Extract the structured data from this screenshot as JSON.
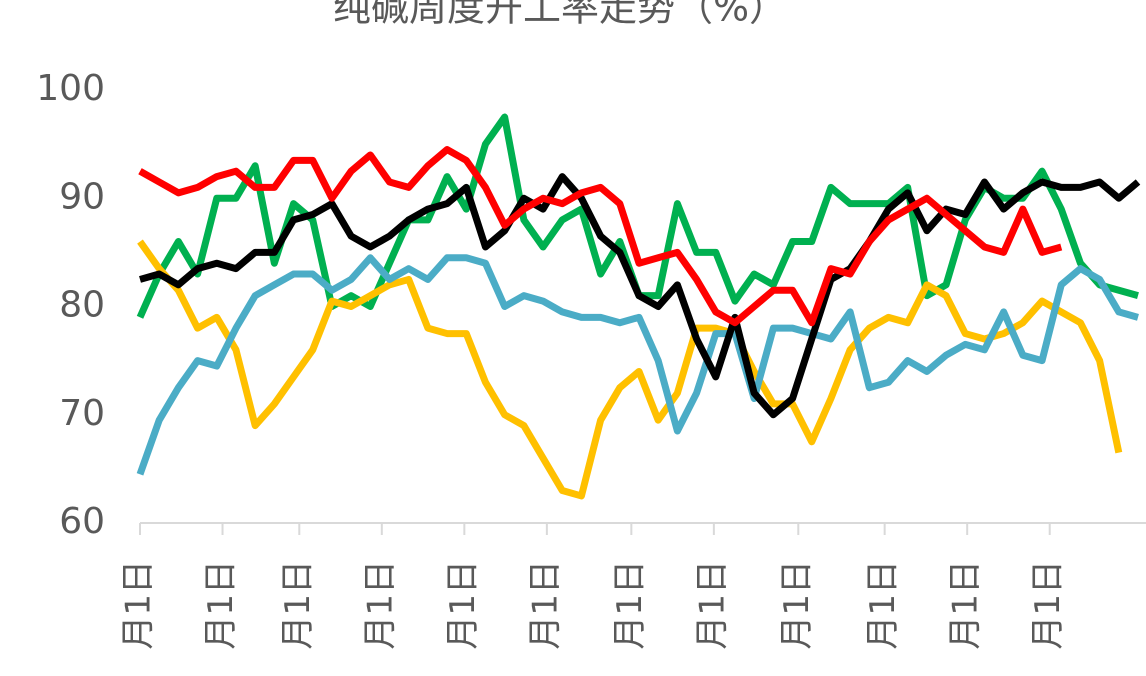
{
  "chart_data": {
    "type": "line",
    "title": "纯碱周度开工率走势（%）",
    "xlim": [
      0,
      52
    ],
    "xticks": [
      {
        "value": 0,
        "label": "月1日"
      },
      {
        "value": 4.3,
        "label": "月1日"
      },
      {
        "value": 8.3,
        "label": "月1日"
      },
      {
        "value": 12.6,
        "label": "月1日"
      },
      {
        "value": 16.9,
        "label": "月1日"
      },
      {
        "value": 21.2,
        "label": "月1日"
      },
      {
        "value": 25.6,
        "label": "月1日"
      },
      {
        "value": 29.9,
        "label": "月1日"
      },
      {
        "value": 34.3,
        "label": "月1日"
      },
      {
        "value": 38.8,
        "label": "月1日"
      },
      {
        "value": 43.1,
        "label": "月1日"
      },
      {
        "value": 47.4,
        "label": "月1日"
      }
    ],
    "ylim": [
      60,
      100
    ],
    "yticks": [
      60,
      70,
      80,
      90,
      100
    ],
    "series": [
      {
        "color": "#00b050",
        "values": [
          79,
          83,
          86,
          83,
          90,
          90,
          93,
          84,
          89.5,
          88,
          80,
          81,
          80,
          84,
          88,
          88,
          92,
          89,
          95,
          97.5,
          88,
          85.5,
          88,
          89,
          83,
          86,
          81,
          81,
          89.5,
          85,
          85,
          80.5,
          83,
          82,
          86,
          86,
          91,
          89.5,
          89.5,
          89.5,
          91,
          81,
          82,
          88,
          91,
          90,
          90,
          92.5,
          89,
          84,
          82,
          81.5,
          81
        ]
      },
      {
        "color": "#ffc000",
        "values": [
          86,
          83.5,
          81.5,
          78,
          79,
          76,
          69,
          71,
          73.5,
          76,
          80.5,
          80,
          81,
          82,
          82.5,
          78,
          77.5,
          77.5,
          73,
          70,
          69,
          66,
          63,
          62.5,
          69.5,
          72.5,
          74,
          69.5,
          72,
          78,
          78,
          77.5,
          74,
          71,
          71,
          67.5,
          71.5,
          76,
          78,
          79,
          78.5,
          82,
          81,
          77.5,
          77,
          77.5,
          78.5,
          80.5,
          79.5,
          78.5,
          75,
          66.5,
          null
        ]
      },
      {
        "color": "#4bacc6",
        "values": [
          64.5,
          69.5,
          72.5,
          75,
          74.5,
          78,
          81,
          82,
          83,
          83,
          81.5,
          82.5,
          84.5,
          82.5,
          83.5,
          82.5,
          84.5,
          84.5,
          84,
          80,
          81,
          80.5,
          79.5,
          79,
          79,
          78.5,
          79,
          75,
          68.5,
          72,
          77.5,
          77.5,
          71.5,
          78,
          78,
          77.5,
          77,
          79.5,
          72.5,
          73,
          75,
          74,
          75.5,
          76.5,
          76,
          79.5,
          75.5,
          75,
          82,
          83.5,
          82.5,
          79.5,
          79
        ]
      },
      {
        "color": "#000000",
        "values": [
          82.5,
          83,
          82,
          83.5,
          84,
          83.5,
          85,
          85,
          88,
          88.5,
          89.5,
          86.5,
          85.5,
          86.5,
          88,
          89,
          89.5,
          91,
          85.5,
          87,
          90,
          89,
          92,
          90,
          86.5,
          85,
          81,
          80,
          82,
          77,
          73.5,
          79,
          72,
          70,
          71.5,
          77,
          82.5,
          83.5,
          86,
          89,
          90.5,
          87,
          89,
          88.5,
          91.5,
          89,
          90.5,
          91.5,
          91,
          91,
          91.5,
          90,
          91.5
        ]
      },
      {
        "color": "#ff0000",
        "values": [
          92.5,
          91.5,
          90.5,
          91,
          92,
          92.5,
          91,
          91,
          93.5,
          93.5,
          90,
          92.5,
          94,
          91.5,
          91,
          93,
          94.5,
          93.5,
          91,
          87.5,
          89,
          90,
          89.5,
          90.5,
          91,
          89.5,
          84,
          84.5,
          85,
          82.5,
          79.5,
          78.5,
          80,
          81.5,
          81.5,
          78.5,
          83.5,
          83,
          86,
          88,
          89,
          90,
          88.5,
          87,
          85.5,
          85,
          89,
          85,
          85.5,
          null,
          null,
          null,
          null
        ]
      }
    ]
  }
}
